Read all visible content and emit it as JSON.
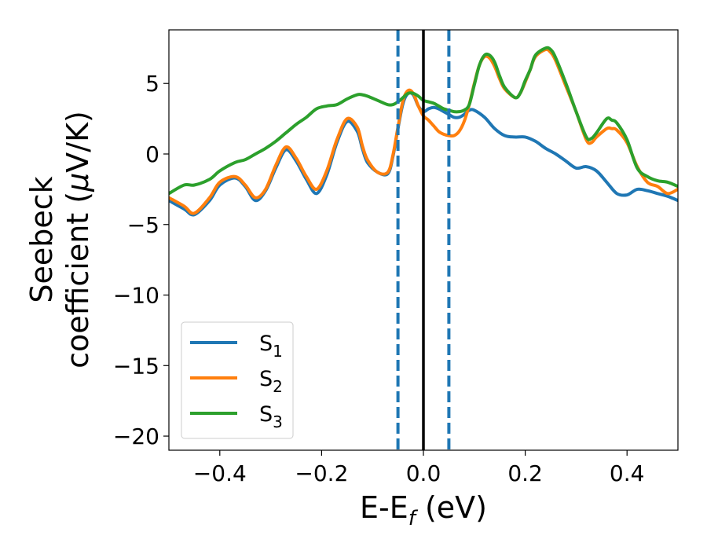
{
  "chart_data": {
    "type": "line",
    "xlabel": {
      "main": "E-E",
      "sub": "f",
      "suffix": " (eV)"
    },
    "ylabel": {
      "line1": "Seebeck",
      "line2": "coefficient  (",
      "mu": "μ",
      "line2_end": "V/K)"
    },
    "xlim": [
      -0.5,
      0.5
    ],
    "ylim": [
      -21,
      8.8
    ],
    "xticks": [
      -0.4,
      -0.2,
      0.0,
      0.2,
      0.4
    ],
    "xtick_labels": [
      "−0.4",
      "−0.2",
      "0.0",
      "0.2",
      "0.4"
    ],
    "yticks": [
      5,
      0,
      -5,
      -10,
      -15,
      -20
    ],
    "ytick_labels": [
      "5",
      "0",
      "−5",
      "−10",
      "−15",
      "−20"
    ],
    "grid": false,
    "legend_position": "lower-left",
    "vlines": [
      {
        "x": -0.05,
        "style": "dashed",
        "color": "#1f77b4"
      },
      {
        "x": 0.0,
        "style": "solid",
        "color": "#000000"
      },
      {
        "x": 0.05,
        "style": "dashed",
        "color": "#1f77b4"
      }
    ],
    "series": [
      {
        "name_base": "S",
        "name_sub": "1",
        "color": "#1f77b4",
        "x": [
          -0.5,
          -0.47,
          -0.45,
          -0.42,
          -0.4,
          -0.37,
          -0.35,
          -0.33,
          -0.31,
          -0.29,
          -0.27,
          -0.25,
          -0.23,
          -0.21,
          -0.19,
          -0.17,
          -0.15,
          -0.13,
          -0.12,
          -0.11,
          -0.09,
          -0.07,
          -0.06,
          -0.05,
          -0.04,
          -0.03,
          -0.02,
          -0.01,
          0.0,
          0.01,
          0.02,
          0.03,
          0.04,
          0.05,
          0.06,
          0.07,
          0.08,
          0.09,
          0.1,
          0.12,
          0.14,
          0.16,
          0.18,
          0.2,
          0.22,
          0.24,
          0.26,
          0.28,
          0.3,
          0.32,
          0.34,
          0.36,
          0.38,
          0.4,
          0.42,
          0.44,
          0.46,
          0.48,
          0.5
        ],
        "y": [
          -3.3,
          -3.9,
          -4.3,
          -3.3,
          -2.2,
          -1.7,
          -2.3,
          -3.3,
          -2.6,
          -1.0,
          0.3,
          -0.5,
          -1.8,
          -2.8,
          -1.5,
          0.8,
          2.3,
          1.6,
          0.4,
          -0.6,
          -1.3,
          -1.4,
          -0.2,
          1.8,
          3.6,
          4.3,
          4.2,
          3.4,
          3.0,
          3.2,
          3.3,
          3.2,
          3.0,
          2.8,
          2.6,
          2.6,
          2.8,
          3.1,
          3.1,
          2.6,
          1.8,
          1.3,
          1.2,
          1.2,
          0.9,
          0.4,
          0.0,
          -0.5,
          -1.0,
          -0.9,
          -1.2,
          -2.0,
          -2.8,
          -2.9,
          -2.5,
          -2.6,
          -2.8,
          -3.0,
          -3.3
        ]
      },
      {
        "name_base": "S",
        "name_sub": "2",
        "color": "#ff7f0e",
        "x": [
          -0.5,
          -0.47,
          -0.45,
          -0.42,
          -0.4,
          -0.37,
          -0.35,
          -0.33,
          -0.31,
          -0.29,
          -0.27,
          -0.25,
          -0.23,
          -0.21,
          -0.19,
          -0.17,
          -0.15,
          -0.13,
          -0.12,
          -0.11,
          -0.09,
          -0.07,
          -0.06,
          -0.05,
          -0.04,
          -0.03,
          -0.02,
          -0.01,
          0.0,
          0.01,
          0.02,
          0.03,
          0.04,
          0.05,
          0.06,
          0.07,
          0.08,
          0.09,
          0.1,
          0.11,
          0.12,
          0.13,
          0.14,
          0.15,
          0.16,
          0.18,
          0.19,
          0.2,
          0.21,
          0.22,
          0.24,
          0.25,
          0.26,
          0.28,
          0.3,
          0.32,
          0.33,
          0.34,
          0.36,
          0.37,
          0.38,
          0.4,
          0.42,
          0.44,
          0.46,
          0.48,
          0.5
        ],
        "y": [
          -3.1,
          -3.7,
          -4.2,
          -3.1,
          -2.0,
          -1.6,
          -2.2,
          -3.1,
          -2.5,
          -0.8,
          0.5,
          -0.3,
          -1.6,
          -2.5,
          -1.2,
          1.0,
          2.5,
          1.9,
          0.6,
          -0.4,
          -1.3,
          -1.3,
          -0.1,
          1.9,
          3.8,
          4.5,
          4.3,
          3.4,
          2.7,
          2.4,
          2.0,
          1.6,
          1.4,
          1.3,
          1.3,
          1.6,
          2.3,
          3.5,
          5.0,
          6.3,
          6.9,
          6.8,
          6.2,
          5.3,
          4.6,
          4.0,
          4.3,
          5.1,
          6.0,
          6.9,
          7.4,
          7.2,
          6.6,
          4.8,
          3.0,
          1.0,
          0.8,
          1.2,
          1.8,
          1.8,
          1.7,
          0.8,
          -0.9,
          -2.0,
          -2.3,
          -2.8,
          -2.5
        ]
      },
      {
        "name_base": "S",
        "name_sub": "3",
        "color": "#2ca02c",
        "x": [
          -0.5,
          -0.47,
          -0.45,
          -0.42,
          -0.4,
          -0.37,
          -0.35,
          -0.33,
          -0.31,
          -0.29,
          -0.27,
          -0.25,
          -0.23,
          -0.21,
          -0.19,
          -0.17,
          -0.15,
          -0.13,
          -0.12,
          -0.11,
          -0.09,
          -0.07,
          -0.06,
          -0.05,
          -0.04,
          -0.03,
          -0.02,
          -0.01,
          0.0,
          0.01,
          0.02,
          0.03,
          0.04,
          0.05,
          0.06,
          0.07,
          0.08,
          0.09,
          0.1,
          0.11,
          0.12,
          0.13,
          0.14,
          0.15,
          0.16,
          0.18,
          0.19,
          0.2,
          0.21,
          0.22,
          0.24,
          0.25,
          0.26,
          0.28,
          0.3,
          0.32,
          0.33,
          0.34,
          0.36,
          0.37,
          0.38,
          0.4,
          0.42,
          0.44,
          0.46,
          0.48,
          0.5
        ],
        "y": [
          -2.8,
          -2.2,
          -2.2,
          -1.8,
          -1.2,
          -0.6,
          -0.4,
          0.0,
          0.4,
          0.9,
          1.5,
          2.1,
          2.6,
          3.2,
          3.4,
          3.5,
          3.9,
          4.2,
          4.2,
          4.1,
          3.8,
          3.5,
          3.5,
          3.7,
          4.0,
          4.3,
          4.3,
          4.1,
          3.8,
          3.7,
          3.6,
          3.4,
          3.2,
          3.1,
          3.0,
          3.0,
          3.1,
          3.5,
          4.9,
          6.3,
          7.0,
          7.0,
          6.5,
          5.5,
          4.7,
          4.0,
          4.3,
          5.2,
          6.0,
          7.0,
          7.5,
          7.4,
          6.8,
          5.0,
          3.0,
          1.2,
          1.1,
          1.5,
          2.5,
          2.4,
          2.2,
          1.0,
          -1.0,
          -1.6,
          -1.9,
          -2.0,
          -2.3
        ]
      }
    ]
  }
}
